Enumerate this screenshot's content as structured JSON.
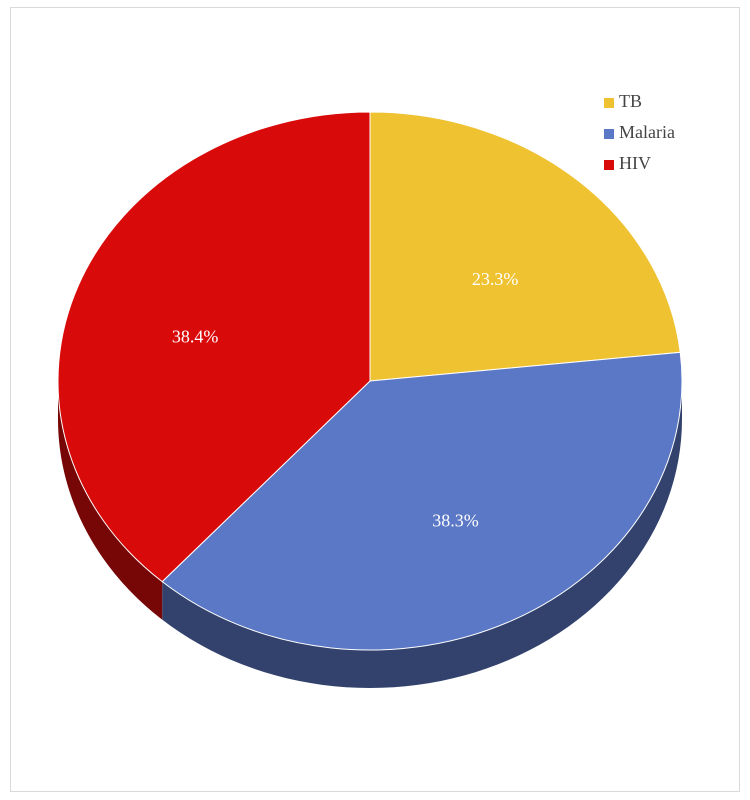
{
  "chart_data": {
    "type": "pie",
    "categories": [
      "TB",
      "Malaria",
      "HIV"
    ],
    "values": [
      23.3,
      38.3,
      38.4
    ],
    "value_labels": [
      "23.3%",
      "38.3%",
      "38.4%"
    ],
    "colors": [
      "#efc232",
      "#5b78c6",
      "#d90a0a"
    ],
    "legend": "top-right"
  }
}
